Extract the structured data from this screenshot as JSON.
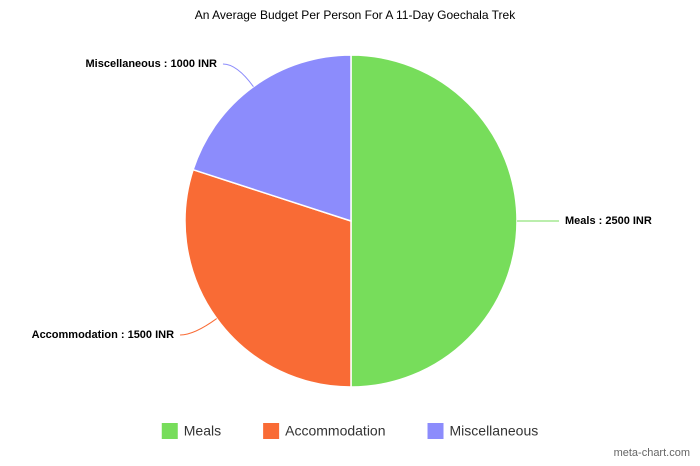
{
  "chart_data": {
    "type": "pie",
    "title": "An Average Budget Per Person For A 11-Day Goechala Trek",
    "categories": [
      "Meals",
      "Accommodation",
      "Miscellaneous"
    ],
    "values": [
      2500,
      1500,
      1000
    ],
    "value_labels": [
      "Meals : 2500 INR",
      "Accommodation : 1500 INR",
      "Miscellaneous : 1000 INR"
    ],
    "colors": [
      "#77dd5b",
      "#f96b35",
      "#8c8cfc"
    ],
    "legend": "bottom",
    "credit": "meta-chart.com"
  }
}
